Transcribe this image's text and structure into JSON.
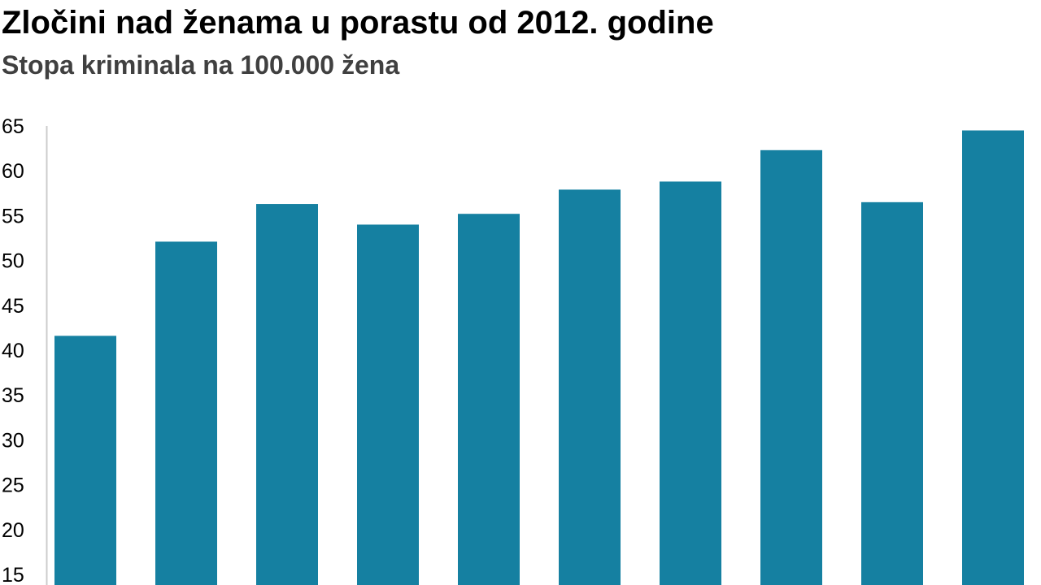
{
  "chart_data": {
    "type": "bar",
    "title": "Zločini nad ženama u porastu od 2012. godine",
    "subtitle": "Stopa kriminala na 100.000 žena",
    "xlabel": "",
    "ylabel": "",
    "ylim": [
      15,
      65
    ],
    "yticks": [
      "15",
      "20",
      "25",
      "30",
      "35",
      "40",
      "45",
      "50",
      "55",
      "60",
      "65"
    ],
    "values": [
      41.6,
      52.1,
      56.3,
      54.0,
      55.2,
      57.9,
      58.8,
      62.3,
      56.5,
      64.5
    ],
    "grid": false,
    "bar_color": "#1580a1",
    "axis_color": "#cccccc"
  }
}
